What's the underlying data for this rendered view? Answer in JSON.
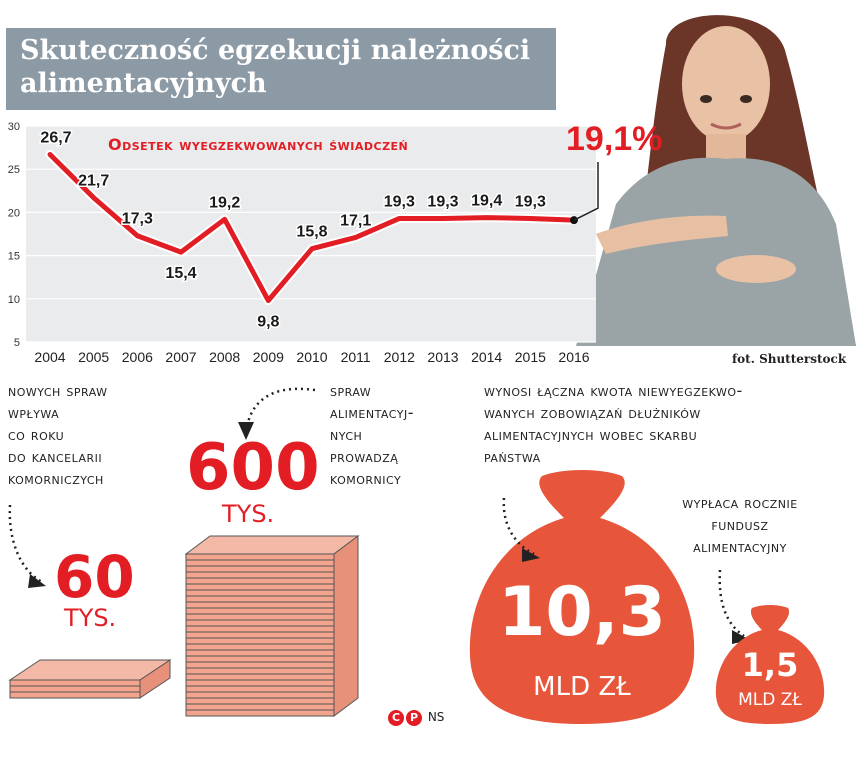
{
  "header": {
    "title_line1": "Skuteczność egzekucji należności",
    "title_line2": "alimentacyjnych"
  },
  "chart_data": {
    "type": "line",
    "title": "Odsetek wyegzekwowanych świadczeń",
    "x": [
      "2004",
      "2005",
      "2006",
      "2007",
      "2008",
      "2009",
      "2010",
      "2011",
      "2012",
      "2013",
      "2014",
      "2015",
      "2016"
    ],
    "series": [
      {
        "values": [
          26.7,
          21.7,
          17.3,
          15.4,
          19.2,
          9.8,
          15.8,
          17.1,
          19.3,
          19.3,
          19.4,
          19.3,
          19.1
        ]
      }
    ],
    "data_labels": [
      "26,7",
      "21,7",
      "17,3",
      "15,4",
      "19,2",
      "9,8",
      "15,8",
      "17,1",
      "19,3",
      "19,3",
      "19,4",
      "19,3"
    ],
    "highlight_label": "19,1%",
    "yticks": [
      "5",
      "10",
      "15",
      "20",
      "25",
      "30"
    ],
    "ylim": [
      5,
      30
    ],
    "grid": true,
    "line_color": "#e21d24"
  },
  "photo_credit": "fot. Shutterstock",
  "stats": {
    "new_cases": {
      "caption": [
        "nowych spraw",
        "wpływa",
        "co roku",
        "do kancelarii",
        "komorniczych"
      ],
      "value": "60",
      "unit": "tys."
    },
    "total_cases": {
      "caption": [
        "spraw",
        "alimentacyj-",
        "nych",
        "prowadzą",
        "komornicy"
      ],
      "value": "600",
      "unit": "tys."
    },
    "unpaid": {
      "caption": [
        "wynosi łączna kwota niewyegzekwo-",
        "wanych zobowiązań dłużników",
        "alimentacyjnych wobec Skarbu",
        "Państwa"
      ],
      "value": "10,3",
      "unit": "MLD ZŁ"
    },
    "fund": {
      "caption": [
        "wypłaca rocznie",
        "Fundusz",
        "Alimentacyjny"
      ],
      "value": "1,5",
      "unit": "MLD ZŁ"
    }
  },
  "copyright": {
    "symbol1": "C",
    "symbol2": "P",
    "agency": "NS"
  },
  "colors": {
    "accent": "#e21d24",
    "header": "#8c9aa5",
    "bag": "#e7553b"
  }
}
